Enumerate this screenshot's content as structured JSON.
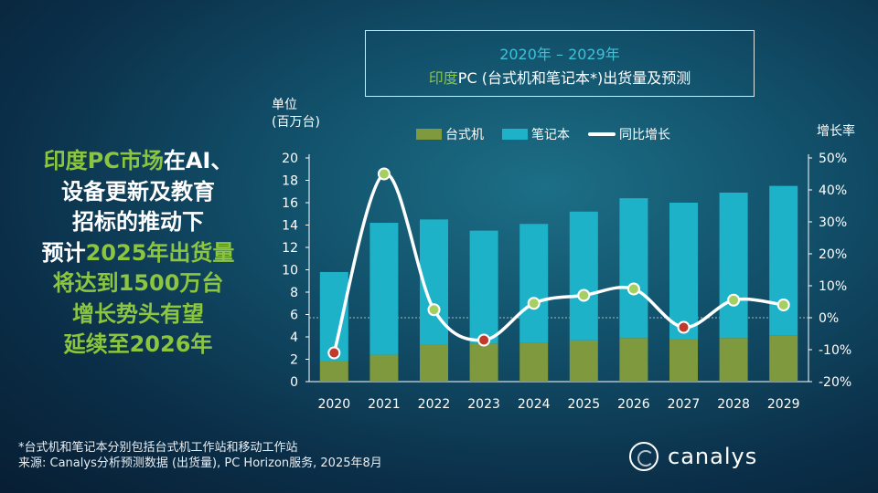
{
  "title": {
    "line1": "2020年 – 2029年",
    "line2_highlight": "印度",
    "line2_rest": "PC (台式机和笔记本*)出货量及预测"
  },
  "headline": {
    "line1_green": "印度PC市场",
    "line1_white": "在AI、",
    "line2": "设备更新及教育",
    "line3": "招标的推动下",
    "line4_white": "预计",
    "line4_green": "2025年出货量",
    "line5": "将达到1500万台",
    "line6": "增长势头有望",
    "line7": "延续至2026年"
  },
  "unit_label": {
    "line1": "单位",
    "line2": "(百万台)"
  },
  "rate_label": "增长率",
  "footnote": {
    "line1": "*台式机和笔记本分别包括台式机工作站和移动工作站",
    "line2": "来源: Canalys分析预测数据 (出货量), PC Horizon服务, 2025年8月"
  },
  "logo": {
    "text": "canalys",
    "icon": "canalys-logo-icon"
  },
  "colors": {
    "desktop": "#7f9a3e",
    "notebook": "#1eb2c8",
    "line": "#ffffff",
    "marker_positive": "#a6cf63",
    "marker_negative": "#c0392b"
  },
  "chart_data": {
    "type": "bar",
    "stacked": true,
    "categories": [
      "2020",
      "2021",
      "2022",
      "2023",
      "2024",
      "2025",
      "2026",
      "2027",
      "2028",
      "2029"
    ],
    "series": [
      {
        "name": "台式机",
        "values": [
          1.8,
          2.4,
          3.3,
          3.4,
          3.5,
          3.7,
          3.9,
          3.8,
          3.9,
          4.1
        ]
      },
      {
        "name": "笔记本",
        "values": [
          8.0,
          11.8,
          11.2,
          10.1,
          10.6,
          11.5,
          12.5,
          12.2,
          13.0,
          13.4
        ]
      }
    ],
    "line_series": {
      "name": "同比增长",
      "values": [
        -11,
        45,
        2.5,
        -7,
        4.5,
        7,
        9,
        -3,
        5.5,
        4
      ]
    },
    "ylabel": "单位\n(百万台)",
    "ylim": [
      0,
      20
    ],
    "yticks": [
      0,
      2,
      4,
      6,
      8,
      10,
      12,
      14,
      16,
      18,
      20
    ],
    "y2label": "增长率",
    "y2lim": [
      -20,
      50
    ],
    "y2ticks": [
      "-20%",
      "-10%",
      "0%",
      "10%",
      "20%",
      "30%",
      "40%",
      "50%"
    ],
    "legend": "top"
  }
}
